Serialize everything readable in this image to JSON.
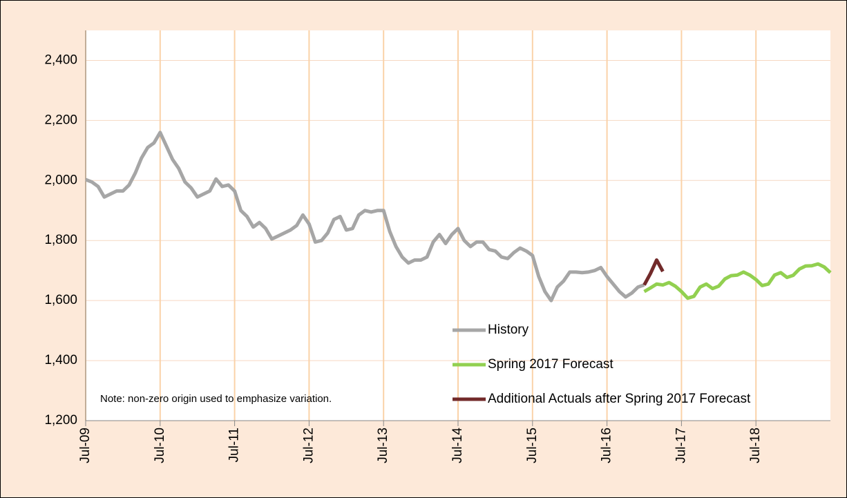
{
  "chart_data": {
    "type": "line",
    "note": "Note: non-zero origin used to emphasize variation.",
    "categories": [
      "Jul-09",
      null,
      null,
      null,
      null,
      null,
      null,
      null,
      null,
      null,
      null,
      null,
      "Jul-10",
      null,
      null,
      null,
      null,
      null,
      null,
      null,
      null,
      null,
      null,
      null,
      "Jul-11",
      null,
      null,
      null,
      null,
      null,
      null,
      null,
      null,
      null,
      null,
      null,
      "Jul-12",
      null,
      null,
      null,
      null,
      null,
      null,
      null,
      null,
      null,
      null,
      null,
      "Jul-13",
      null,
      null,
      null,
      null,
      null,
      null,
      null,
      null,
      null,
      null,
      null,
      "Jul-14",
      null,
      null,
      null,
      null,
      null,
      null,
      null,
      null,
      null,
      null,
      null,
      "Jul-15",
      null,
      null,
      null,
      null,
      null,
      null,
      null,
      null,
      null,
      null,
      null,
      "Jul-16",
      null,
      null,
      null,
      null,
      null,
      null,
      null,
      null,
      null,
      null,
      null,
      "Jul-17",
      null,
      null,
      null,
      null,
      null,
      null,
      null,
      null,
      null,
      null,
      null,
      "Jul-18",
      null,
      null,
      null,
      null,
      null,
      null,
      null,
      null,
      null,
      null,
      null,
      null
    ],
    "ylim": [
      1200,
      2500
    ],
    "yticks": [
      {
        "value": 1200,
        "label": "1,200"
      },
      {
        "value": 1400,
        "label": "1,400"
      },
      {
        "value": 1600,
        "label": "1,600"
      },
      {
        "value": 1800,
        "label": "1,800"
      },
      {
        "value": 2000,
        "label": "2,000"
      },
      {
        "value": 2200,
        "label": "2,200"
      },
      {
        "value": 2400,
        "label": "2,400"
      }
    ],
    "grid": true,
    "legend": "bottom-right",
    "series": [
      {
        "name": "History",
        "color": "#a6a6a6",
        "values": [
          2003,
          1995,
          1980,
          1945,
          1955,
          1965,
          1965,
          1985,
          2025,
          2075,
          2110,
          2125,
          2160,
          2115,
          2070,
          2040,
          1995,
          1975,
          1945,
          1955,
          1965,
          2005,
          1980,
          1985,
          1965,
          1900,
          1880,
          1845,
          1860,
          1840,
          1805,
          1815,
          1825,
          1835,
          1850,
          1885,
          1855,
          1795,
          1800,
          1825,
          1870,
          1880,
          1835,
          1840,
          1885,
          1900,
          1895,
          1900,
          1900,
          1830,
          1780,
          1745,
          1725,
          1735,
          1735,
          1745,
          1795,
          1820,
          1790,
          1820,
          1840,
          1800,
          1780,
          1795,
          1795,
          1770,
          1765,
          1745,
          1740,
          1760,
          1775,
          1765,
          1750,
          1680,
          1630,
          1600,
          1645,
          1665,
          1695,
          1695,
          1693,
          1695,
          1700,
          1710,
          1680,
          1655,
          1630,
          1612,
          1625,
          1645,
          1652,
          null,
          null,
          null,
          null,
          null,
          null,
          null,
          null,
          null,
          null,
          null,
          null,
          null,
          null,
          null,
          null,
          null,
          null,
          null,
          null,
          null,
          null,
          null,
          null,
          null,
          null,
          null,
          null,
          null,
          null
        ]
      },
      {
        "name": "Spring 2017 Forecast",
        "color": "#92d050",
        "values": [
          null,
          null,
          null,
          null,
          null,
          null,
          null,
          null,
          null,
          null,
          null,
          null,
          null,
          null,
          null,
          null,
          null,
          null,
          null,
          null,
          null,
          null,
          null,
          null,
          null,
          null,
          null,
          null,
          null,
          null,
          null,
          null,
          null,
          null,
          null,
          null,
          null,
          null,
          null,
          null,
          null,
          null,
          null,
          null,
          null,
          null,
          null,
          null,
          null,
          null,
          null,
          null,
          null,
          null,
          null,
          null,
          null,
          null,
          null,
          null,
          null,
          null,
          null,
          null,
          null,
          null,
          null,
          null,
          null,
          null,
          null,
          null,
          null,
          null,
          null,
          null,
          null,
          null,
          null,
          null,
          null,
          null,
          null,
          null,
          null,
          null,
          null,
          null,
          null,
          null,
          1630,
          1642,
          1655,
          1652,
          1660,
          1648,
          1630,
          1608,
          1614,
          1645,
          1655,
          1640,
          1648,
          1672,
          1683,
          1685,
          1695,
          1685,
          1670,
          1650,
          1655,
          1685,
          1693,
          1677,
          1684,
          1705,
          1715,
          1716,
          1722,
          1712,
          1693
        ]
      },
      {
        "name": "Additional Actuals after Spring 2017 Forecast",
        "color": "#722a2a",
        "values": [
          null,
          null,
          null,
          null,
          null,
          null,
          null,
          null,
          null,
          null,
          null,
          null,
          null,
          null,
          null,
          null,
          null,
          null,
          null,
          null,
          null,
          null,
          null,
          null,
          null,
          null,
          null,
          null,
          null,
          null,
          null,
          null,
          null,
          null,
          null,
          null,
          null,
          null,
          null,
          null,
          null,
          null,
          null,
          null,
          null,
          null,
          null,
          null,
          null,
          null,
          null,
          null,
          null,
          null,
          null,
          null,
          null,
          null,
          null,
          null,
          null,
          null,
          null,
          null,
          null,
          null,
          null,
          null,
          null,
          null,
          null,
          null,
          null,
          null,
          null,
          null,
          null,
          null,
          null,
          null,
          null,
          null,
          null,
          null,
          null,
          null,
          null,
          null,
          null,
          null,
          1652,
          1690,
          1735,
          1697,
          null,
          null,
          null,
          null,
          null,
          null,
          null,
          null,
          null,
          null,
          null,
          null,
          null,
          null,
          null,
          null,
          null,
          null,
          null,
          null,
          null,
          null,
          null,
          null,
          null,
          null,
          null
        ]
      }
    ]
  }
}
